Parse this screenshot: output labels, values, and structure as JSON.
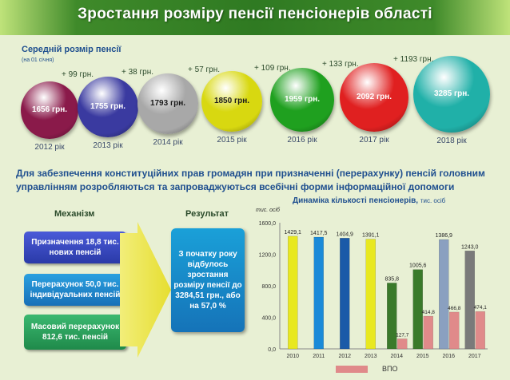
{
  "title": "Зростання розміру пенсії пенсіонерів області",
  "section1": {
    "title": "Середній розмір пенсії",
    "subtitle": "(на 01 січня)",
    "balls": [
      {
        "year": "2012 рік",
        "value": "1656 грн.",
        "color": "#8a1a4a"
      },
      {
        "year": "2013 рік",
        "value": "1755 грн.",
        "color": "#3a3aa0"
      },
      {
        "year": "2014 рік",
        "value": "1793 грн.",
        "color": "#a8a8a8"
      },
      {
        "year": "2015 рік",
        "value": "1850 грн.",
        "color": "#d8d810"
      },
      {
        "year": "2016 рік",
        "value": "1959 грн.",
        "color": "#1fa01f"
      },
      {
        "year": "2017 рік",
        "value": "2092 грн.",
        "color": "#e02020"
      },
      {
        "year": "2018 рік",
        "value": "3285 грн.",
        "color": "#20b0a8"
      }
    ],
    "increments": [
      "+ 99 грн.",
      "+ 38 грн.",
      "+ 57 грн.",
      "+ 109 грн.",
      "+ 133 грн.",
      "+ 1193 грн."
    ]
  },
  "paragraph": "Для забезпечення конституційних прав громадян при призначенні (перерахунку) пенсій головним управлінням розробляються та запроваджуються всебічні форми інформаційної допомоги",
  "mechanism": {
    "header": "Механізм",
    "items": [
      "Призначення 18,8 тис. нових пенсій",
      "Перерахунок 50,0 тис. індивідуальних пенсій",
      "Масовий перерахунок 812,6 тис. пенсій"
    ]
  },
  "result": {
    "header": "Результат",
    "text": "З початку року відбулось зростання розміру пенсії до 3284,51 грн., або на 57,0 %"
  },
  "chart_data": {
    "type": "bar",
    "title": "Динаміка кількості пенсіонерів,",
    "title_unit": "тис. осіб",
    "ylabel": "тис. осіб",
    "ylim": [
      0,
      1600
    ],
    "yticks": [
      "0,0",
      "400,0",
      "800,0",
      "1200,0",
      "1600,0"
    ],
    "categories": [
      "2010",
      "2011",
      "2012",
      "2013",
      "2014",
      "2015",
      "2016",
      "2017"
    ],
    "series": [
      {
        "name": "",
        "values": [
          1429.1,
          1417.5,
          1404.9,
          1391.1,
          835.8,
          1005.6,
          1386.9,
          1243.0
        ],
        "labels": [
          "1429,1",
          "1417,5",
          "1404,9",
          "1391,1",
          "835,8",
          "1005,6",
          "1386,9",
          "1243,0"
        ],
        "colors": [
          "#e8e820",
          "#1a8ad8",
          "#1a5aa8",
          "#e8e820",
          "#3a7a2a",
          "#3a7a2a",
          "#8aa0c0",
          "#7a7a7a"
        ]
      },
      {
        "name": "ВПО",
        "values": [
          null,
          null,
          null,
          null,
          127.7,
          414.8,
          466.8,
          474.1
        ],
        "labels": [
          "",
          "",
          "",
          "",
          "127,7",
          "414,8",
          "466,8",
          "474,1"
        ],
        "color": "#e08a8a"
      }
    ],
    "legend": "bottom",
    "grid": false
  }
}
